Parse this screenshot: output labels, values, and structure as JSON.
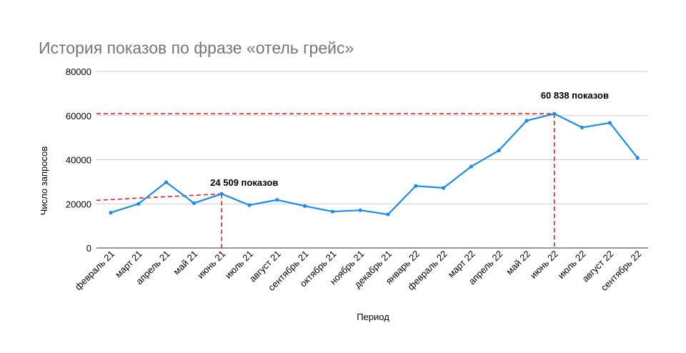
{
  "chart_data": {
    "type": "line",
    "title": "История показов по фразе «отель грейс»",
    "xlabel": "Период",
    "ylabel": "Число запросов",
    "ylim": [
      0,
      80000
    ],
    "yticks": [
      "0",
      "20000",
      "40000",
      "60000",
      "80000"
    ],
    "categories": [
      "февраль 21",
      "март 21",
      "апрель 21",
      "май 21",
      "июнь 21",
      "июль 21",
      "август 21",
      "сентябрь 21",
      "октябрь 21",
      "ноябрь 21",
      "декабрь 21",
      "январь 22",
      "февраль 22",
      "март 22",
      "апрель 22",
      "май 22",
      "июнь 22",
      "июль 22",
      "август 22",
      "сентябрь 22"
    ],
    "series": [
      {
        "values": [
          16000,
          20000,
          29800,
          20300,
          24509,
          19400,
          21800,
          19000,
          16500,
          17100,
          15200,
          28100,
          27200,
          36900,
          44200,
          57700,
          60838,
          54600,
          56700,
          40800
        ]
      }
    ],
    "grid": true,
    "legend": "none",
    "annotations": [
      {
        "text": "24 509 показов",
        "category_index": 4,
        "value": 24509
      },
      {
        "text": "60 838 показов",
        "category_index": 16,
        "value": 60838
      }
    ],
    "colors": {
      "line": "#1a8cf0",
      "guide": "#e02020",
      "grid": "#cccccc",
      "title": "#757575"
    }
  }
}
